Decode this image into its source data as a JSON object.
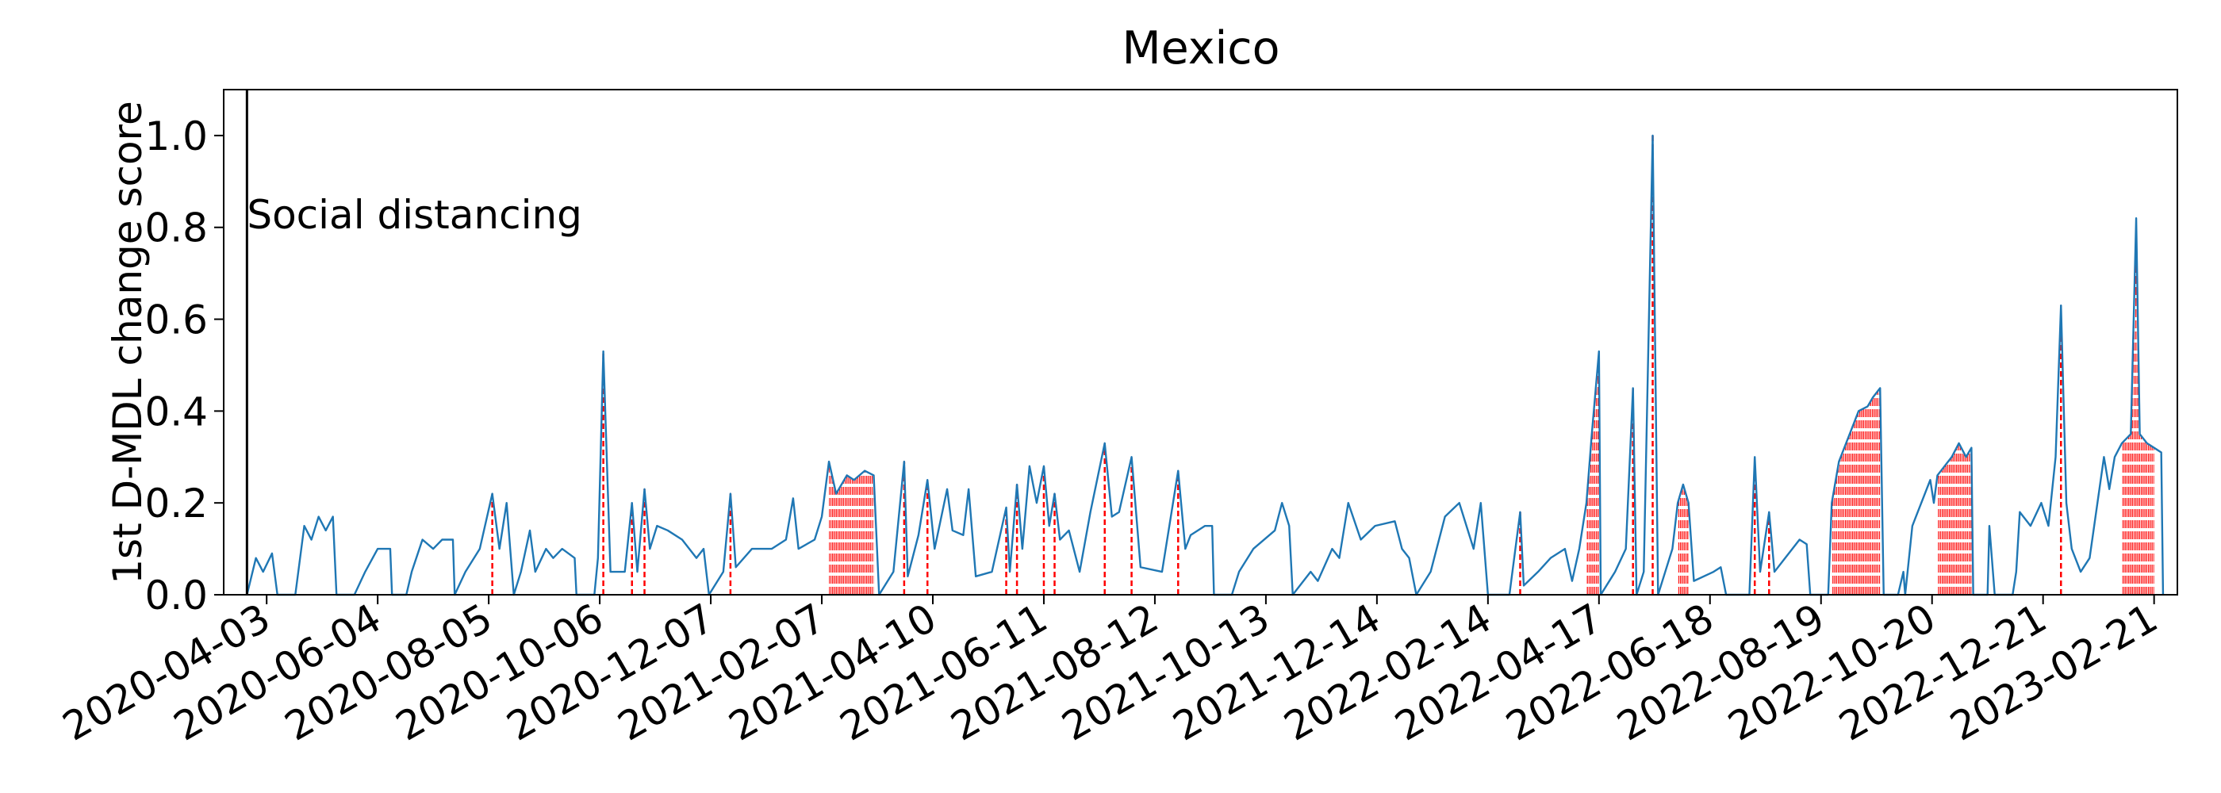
{
  "chart_data": {
    "type": "line",
    "title": "Mexico",
    "y_label": "1st D-MDL change score",
    "color": "#1f77b4",
    "alarm_color": "red",
    "xlim": [
      "2020-03-10",
      "2023-03-06"
    ],
    "xticks": [
      "2020-04-03",
      "2020-06-04",
      "2020-08-05",
      "2020-10-06",
      "2020-12-07",
      "2021-02-07",
      "2021-04-10",
      "2021-06-11",
      "2021-08-12",
      "2021-10-13",
      "2021-12-14",
      "2022-02-14",
      "2022-04-17",
      "2022-06-18",
      "2022-08-19",
      "2022-10-20",
      "2022-12-21",
      "2023-02-21"
    ],
    "ylim": [
      0,
      1.1
    ],
    "yticks": [
      {
        "value": 0,
        "label": "0.0"
      },
      0.2,
      0.4,
      0.6,
      0.8,
      {
        "value": 1,
        "label": "1.0"
      }
    ],
    "annotations": [
      {
        "x": "2020-03-23",
        "text": "Social distancing"
      }
    ],
    "x": [
      "2020-03-23",
      "2020-03-28",
      "2020-04-01",
      "2020-04-06",
      "2020-04-09",
      "2020-04-19",
      "2020-04-24",
      "2020-04-28",
      "2020-05-02",
      "2020-05-06",
      "2020-05-10",
      "2020-05-12",
      "2020-05-22",
      "2020-05-28",
      "2020-06-04",
      "2020-06-11",
      "2020-06-12",
      "2020-06-20",
      "2020-06-23",
      "2020-06-29",
      "2020-07-05",
      "2020-07-10",
      "2020-07-16",
      "2020-07-17",
      "2020-07-23",
      "2020-07-31",
      "2020-08-07",
      "2020-08-11",
      "2020-08-15",
      "2020-08-19",
      "2020-08-23",
      "2020-08-28",
      "2020-08-31",
      "2020-09-06",
      "2020-09-10",
      "2020-09-15",
      "2020-09-22",
      "2020-09-23",
      "2020-10-03",
      "2020-10-05",
      "2020-10-08",
      "2020-10-12",
      "2020-10-20",
      "2020-10-24",
      "2020-10-27",
      "2020-10-31",
      "2020-11-03",
      "2020-11-07",
      "2020-11-13",
      "2020-11-21",
      "2020-11-29",
      "2020-12-03",
      "2020-12-06",
      "2020-12-14",
      "2020-12-18",
      "2020-12-21",
      "2020-12-30",
      "2021-01-10",
      "2021-01-18",
      "2021-01-22",
      "2021-01-25",
      "2021-02-03",
      "2021-02-07",
      "2021-02-11",
      "2021-02-15",
      "2021-02-21",
      "2021-02-25",
      "2021-03-03",
      "2021-03-08",
      "2021-03-11",
      "2021-03-19",
      "2021-03-25",
      "2021-03-27",
      "2021-04-02",
      "2021-04-07",
      "2021-04-11",
      "2021-04-18",
      "2021-04-21",
      "2021-04-27",
      "2021-04-30",
      "2021-05-04",
      "2021-05-13",
      "2021-05-21",
      "2021-05-23",
      "2021-05-27",
      "2021-05-30",
      "2021-06-03",
      "2021-06-07",
      "2021-06-11",
      "2021-06-14",
      "2021-06-17",
      "2021-06-20",
      "2021-06-25",
      "2021-07-01",
      "2021-07-07",
      "2021-07-15",
      "2021-07-19",
      "2021-07-23",
      "2021-07-30",
      "2021-08-04",
      "2021-08-16",
      "2021-08-25",
      "2021-08-29",
      "2021-09-01",
      "2021-09-09",
      "2021-09-13",
      "2021-09-14",
      "2021-09-24",
      "2021-09-28",
      "2021-10-06",
      "2021-10-18",
      "2021-10-22",
      "2021-10-26",
      "2021-10-28",
      "2021-11-07",
      "2021-11-11",
      "2021-11-19",
      "2021-11-23",
      "2021-11-28",
      "2021-12-05",
      "2021-12-13",
      "2021-12-24",
      "2021-12-28",
      "2022-01-01",
      "2022-01-05",
      "2022-01-13",
      "2022-01-21",
      "2022-01-29",
      "2022-02-06",
      "2022-02-10",
      "2022-02-14",
      "2022-02-26",
      "2022-03-04",
      "2022-03-06",
      "2022-03-14",
      "2022-03-21",
      "2022-03-29",
      "2022-04-02",
      "2022-04-06",
      "2022-04-10",
      "2022-04-13",
      "2022-04-17",
      "2022-04-18",
      "2022-04-26",
      "2022-05-02",
      "2022-05-06",
      "2022-05-08",
      "2022-05-12",
      "2022-05-17",
      "2022-05-20",
      "2022-05-24",
      "2022-05-28",
      "2022-05-31",
      "2022-06-03",
      "2022-06-06",
      "2022-06-09",
      "2022-06-20",
      "2022-06-24",
      "2022-06-27",
      "2022-07-10",
      "2022-07-13",
      "2022-07-16",
      "2022-07-21",
      "2022-07-24",
      "2022-07-30",
      "2022-08-07",
      "2022-08-11",
      "2022-08-13",
      "2022-08-23",
      "2022-08-25",
      "2022-08-29",
      "2022-09-04",
      "2022-09-09",
      "2022-09-14",
      "2022-09-17",
      "2022-09-21",
      "2022-09-23",
      "2022-10-01",
      "2022-10-04",
      "2022-10-05",
      "2022-10-09",
      "2022-10-14",
      "2022-10-19",
      "2022-10-21",
      "2022-10-23",
      "2022-10-31",
      "2022-11-04",
      "2022-11-08",
      "2022-11-11",
      "2022-11-12",
      "2022-11-20",
      "2022-11-21",
      "2022-11-24",
      "2022-12-04",
      "2022-12-06",
      "2022-12-08",
      "2022-12-14",
      "2022-12-20",
      "2022-12-24",
      "2022-12-28",
      "2022-12-31",
      "2023-01-03",
      "2023-01-06",
      "2023-01-11",
      "2023-01-16",
      "2023-01-24",
      "2023-01-27",
      "2023-01-30",
      "2023-02-03",
      "2023-02-08",
      "2023-02-11",
      "2023-02-13",
      "2023-02-17",
      "2023-02-21",
      "2023-02-25",
      "2023-02-26"
    ],
    "values": [
      0,
      0.08,
      0.05,
      0.09,
      0,
      0,
      0.15,
      0.12,
      0.17,
      0.14,
      0.17,
      0,
      0,
      0.05,
      0.1,
      0.1,
      0,
      0,
      0.05,
      0.12,
      0.1,
      0.12,
      0.12,
      0,
      0.05,
      0.1,
      0.22,
      0.1,
      0.2,
      0,
      0.05,
      0.14,
      0.05,
      0.1,
      0.08,
      0.1,
      0.08,
      0,
      0,
      0.08,
      0.53,
      0.05,
      0.05,
      0.2,
      0.05,
      0.23,
      0.1,
      0.15,
      0.14,
      0.12,
      0.08,
      0.1,
      0,
      0.05,
      0.22,
      0.06,
      0.1,
      0.1,
      0.12,
      0.21,
      0.1,
      0.12,
      0.17,
      0.29,
      0.22,
      0.26,
      0.25,
      0.27,
      0.26,
      0,
      0.05,
      0.29,
      0.04,
      0.13,
      0.25,
      0.1,
      0.23,
      0.14,
      0.13,
      0.23,
      0.04,
      0.05,
      0.19,
      0.05,
      0.24,
      0.1,
      0.28,
      0.2,
      0.28,
      0.15,
      0.22,
      0.12,
      0.14,
      0.05,
      0.18,
      0.33,
      0.17,
      0.18,
      0.3,
      0.06,
      0.05,
      0.27,
      0.1,
      0.13,
      0.15,
      0.15,
      0,
      0,
      0.05,
      0.1,
      0.14,
      0.2,
      0.15,
      0,
      0.05,
      0.03,
      0.1,
      0.08,
      0.2,
      0.12,
      0.15,
      0.16,
      0.1,
      0.08,
      0,
      0.05,
      0.17,
      0.2,
      0.1,
      0.2,
      0,
      0,
      0.18,
      0.02,
      0.05,
      0.08,
      0.1,
      0.03,
      0.1,
      0.2,
      0.35,
      0.53,
      0,
      0.05,
      0.1,
      0.45,
      0,
      0.05,
      1.0,
      0,
      0.05,
      0.1,
      0.2,
      0.24,
      0.2,
      0.03,
      0.05,
      0.06,
      0,
      0,
      0.3,
      0.05,
      0.18,
      0.05,
      0.08,
      0.12,
      0.11,
      0,
      0,
      0.2,
      0.29,
      0.35,
      0.4,
      0.41,
      0.43,
      0.45,
      0,
      0,
      0.05,
      0,
      0.15,
      0.2,
      0.25,
      0.2,
      0.26,
      0.3,
      0.33,
      0.3,
      0.32,
      0,
      0,
      0.15,
      0,
      0,
      0.05,
      0.18,
      0.15,
      0.2,
      0.15,
      0.3,
      0.63,
      0.2,
      0.1,
      0.05,
      0.08,
      0.3,
      0.23,
      0.3,
      0.33,
      0.35,
      0.82,
      0.35,
      0.33,
      0.32,
      0.31,
      0
    ],
    "alarm_dates": [
      "2020-08-07",
      "2020-10-08",
      "2020-10-24",
      "2020-10-31",
      "2020-12-18",
      "2021-03-25",
      "2021-04-07",
      "2021-05-21",
      "2021-05-27",
      "2021-06-11",
      "2021-06-17",
      "2021-07-15",
      "2021-07-30",
      "2021-08-25",
      "2022-03-04",
      "2022-05-06",
      "2022-05-17",
      "2022-07-13",
      "2022-07-21",
      "2022-12-31"
    ],
    "alarm_periods": [
      [
        "2021-02-11",
        "2021-03-08"
      ],
      [
        "2022-04-10",
        "2022-04-17"
      ],
      [
        "2022-05-31",
        "2022-06-06"
      ],
      [
        "2022-08-25",
        "2022-09-21"
      ],
      [
        "2022-10-23",
        "2022-11-11"
      ],
      [
        "2023-02-03",
        "2023-02-21"
      ]
    ]
  }
}
